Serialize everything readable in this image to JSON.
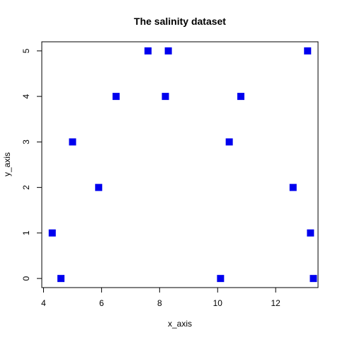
{
  "chart_data": {
    "type": "scatter",
    "title": "The salinity dataset",
    "xlabel": "x_axis",
    "ylabel": "y_axis",
    "xlim": [
      3.94,
      13.46
    ],
    "ylim": [
      -0.2,
      5.2
    ],
    "xticks": [
      4,
      6,
      8,
      10,
      12
    ],
    "yticks": [
      0,
      1,
      2,
      3,
      4,
      5
    ],
    "grid": false,
    "marker": "square",
    "color": "#0000ee",
    "points": [
      {
        "x": 4.3,
        "y": 1
      },
      {
        "x": 4.6,
        "y": 0
      },
      {
        "x": 5.0,
        "y": 3
      },
      {
        "x": 5.9,
        "y": 2
      },
      {
        "x": 6.5,
        "y": 4
      },
      {
        "x": 7.6,
        "y": 5
      },
      {
        "x": 8.2,
        "y": 4
      },
      {
        "x": 8.3,
        "y": 5
      },
      {
        "x": 10.1,
        "y": 0
      },
      {
        "x": 10.4,
        "y": 3
      },
      {
        "x": 10.8,
        "y": 4
      },
      {
        "x": 12.6,
        "y": 2
      },
      {
        "x": 13.1,
        "y": 5
      },
      {
        "x": 13.2,
        "y": 1
      },
      {
        "x": 13.3,
        "y": 0
      }
    ]
  }
}
